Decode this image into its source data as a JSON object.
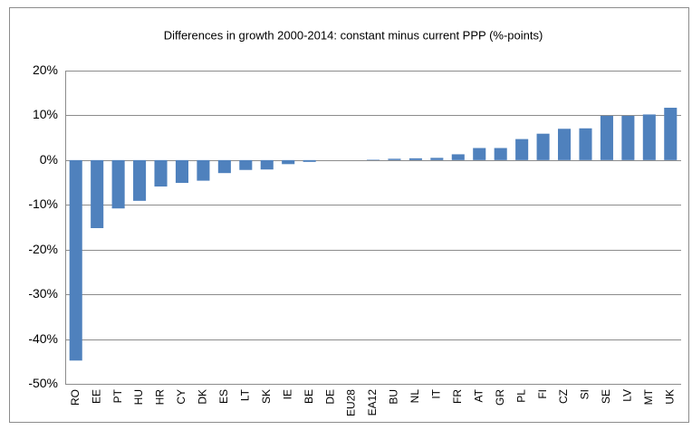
{
  "chart_data": {
    "type": "bar",
    "title": "Differences in growth 2000-2014: constant minus current PPP (%-points)",
    "categories": [
      "RO",
      "EE",
      "PT",
      "HU",
      "HR",
      "CY",
      "DK",
      "ES",
      "LT",
      "SK",
      "IE",
      "BE",
      "DE",
      "EU28",
      "EA12",
      "BU",
      "NL",
      "IT",
      "FR",
      "AT",
      "GR",
      "PL",
      "FI",
      "CZ",
      "SI",
      "SE",
      "LV",
      "MT",
      "UK"
    ],
    "values": [
      -44.8,
      -15.2,
      -10.8,
      -9.1,
      -5.9,
      -5.1,
      -4.6,
      -2.9,
      -2.2,
      -2.1,
      -0.9,
      -0.4,
      0,
      0,
      0.1,
      0.3,
      0.4,
      0.5,
      1.3,
      2.7,
      2.7,
      4.7,
      5.9,
      7.0,
      7.1,
      9.9,
      9.9,
      10.2,
      11.7
    ],
    "color": "#4f81bd",
    "ylim": [
      -50,
      20
    ],
    "yticks": [
      {
        "value": -50,
        "label": "-50%"
      },
      {
        "value": -40,
        "label": "-40%"
      },
      {
        "value": -30,
        "label": "-30%"
      },
      {
        "value": -20,
        "label": "-20%"
      },
      {
        "value": -10,
        "label": "-10%"
      },
      {
        "value": 0,
        "label": "0%"
      },
      {
        "value": 10,
        "label": "10%"
      },
      {
        "value": 20,
        "label": "20%"
      }
    ],
    "grid": true
  }
}
